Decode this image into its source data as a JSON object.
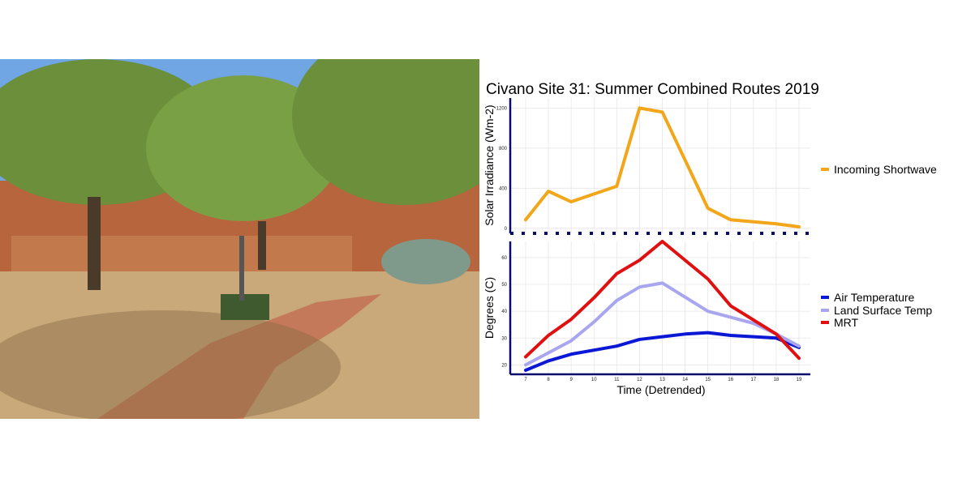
{
  "photo": {
    "colors": {
      "sky": "#6fa6e3",
      "wall": "#b7653d",
      "ground": "#c9a87a",
      "tree": "#6b8f3a",
      "shadow": "#8a6a45"
    }
  },
  "chart_data": {
    "type": "line",
    "title": "Civano Site 31: Summer Combined Routes 2019",
    "xlabel": "Time (Detrended)",
    "x": [
      7,
      8,
      9,
      10,
      11,
      12,
      13,
      14,
      15,
      16,
      17,
      18,
      19
    ],
    "xlim": [
      7,
      19
    ],
    "panels": [
      {
        "ylabel": "Solar Irradiance (Wm-2)",
        "ylim": [
          -50,
          1300
        ],
        "yticks": [
          0,
          400,
          800,
          1200
        ],
        "grid": true,
        "series": [
          {
            "name": "Incoming Shortwave",
            "color": "#f2a71b",
            "x": [
              7,
              8,
              9,
              11,
              12,
              13,
              15,
              16,
              18,
              19
            ],
            "values": [
              85,
              370,
              265,
              420,
              1200,
              1160,
              200,
              85,
              45,
              15
            ]
          }
        ]
      },
      {
        "ylabel": "Degrees (C)",
        "ylim": [
          16.5,
          66
        ],
        "yticks": [
          20,
          30,
          40,
          50,
          60
        ],
        "grid": true,
        "series": [
          {
            "name": "Air Temperature",
            "color": "#0a18d6",
            "x": [
              7,
              8,
              9,
              10,
              11,
              12,
              13,
              14,
              15,
              16,
              17,
              18,
              19
            ],
            "values": [
              18,
              21.5,
              24,
              25.5,
              27,
              29.5,
              30.5,
              31.5,
              32,
              31,
              30.5,
              30,
              26.5
            ]
          },
          {
            "name": "Land Surface Temp",
            "color": "#a9a6ef",
            "x": [
              7,
              8,
              9,
              10,
              11,
              12,
              13,
              15,
              17,
              18,
              19
            ],
            "values": [
              20,
              24.5,
              29,
              36,
              44,
              49,
              50.5,
              40,
              35.5,
              31.5,
              27
            ]
          },
          {
            "name": "MRT",
            "color": "#e01010",
            "x": [
              7,
              8,
              9,
              10,
              11,
              12,
              13,
              15,
              16,
              18,
              19
            ],
            "values": [
              23,
              31,
              37,
              45,
              54,
              59,
              66,
              52,
              42,
              31.5,
              22.5
            ]
          }
        ]
      }
    ],
    "legend_position": "right"
  }
}
